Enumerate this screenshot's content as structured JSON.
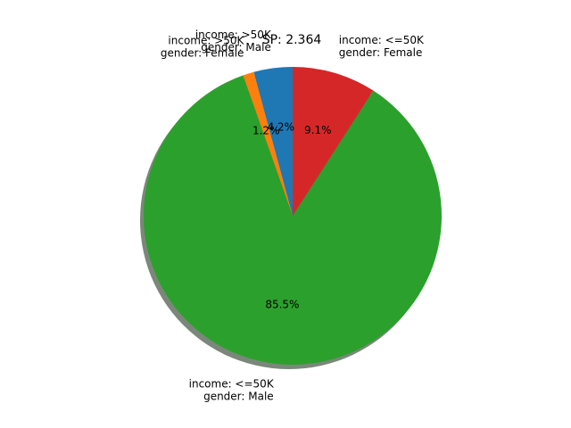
{
  "chart_data": {
    "type": "pie",
    "title": "SP: 2.364",
    "slices": [
      {
        "label": [
          "income: >50K",
          "gender: Male"
        ],
        "percent": 4.2,
        "pct_text": "4.2%",
        "color": "#1f77b4"
      },
      {
        "label": [
          "income: >50K",
          "gender: Female"
        ],
        "percent": 1.2,
        "pct_text": "1.2%",
        "color": "#ff7f0e"
      },
      {
        "label": [
          "income: <=50K",
          "gender: Male"
        ],
        "percent": 85.5,
        "pct_text": "85.5%",
        "color": "#2ca02c"
      },
      {
        "label": [
          "income: <=50K",
          "gender: Female"
        ],
        "percent": 9.1,
        "pct_text": "9.1%",
        "color": "#d62728"
      }
    ],
    "shadow": true,
    "start_angle_deg": 90,
    "counterclockwise": true,
    "legend": "none"
  }
}
